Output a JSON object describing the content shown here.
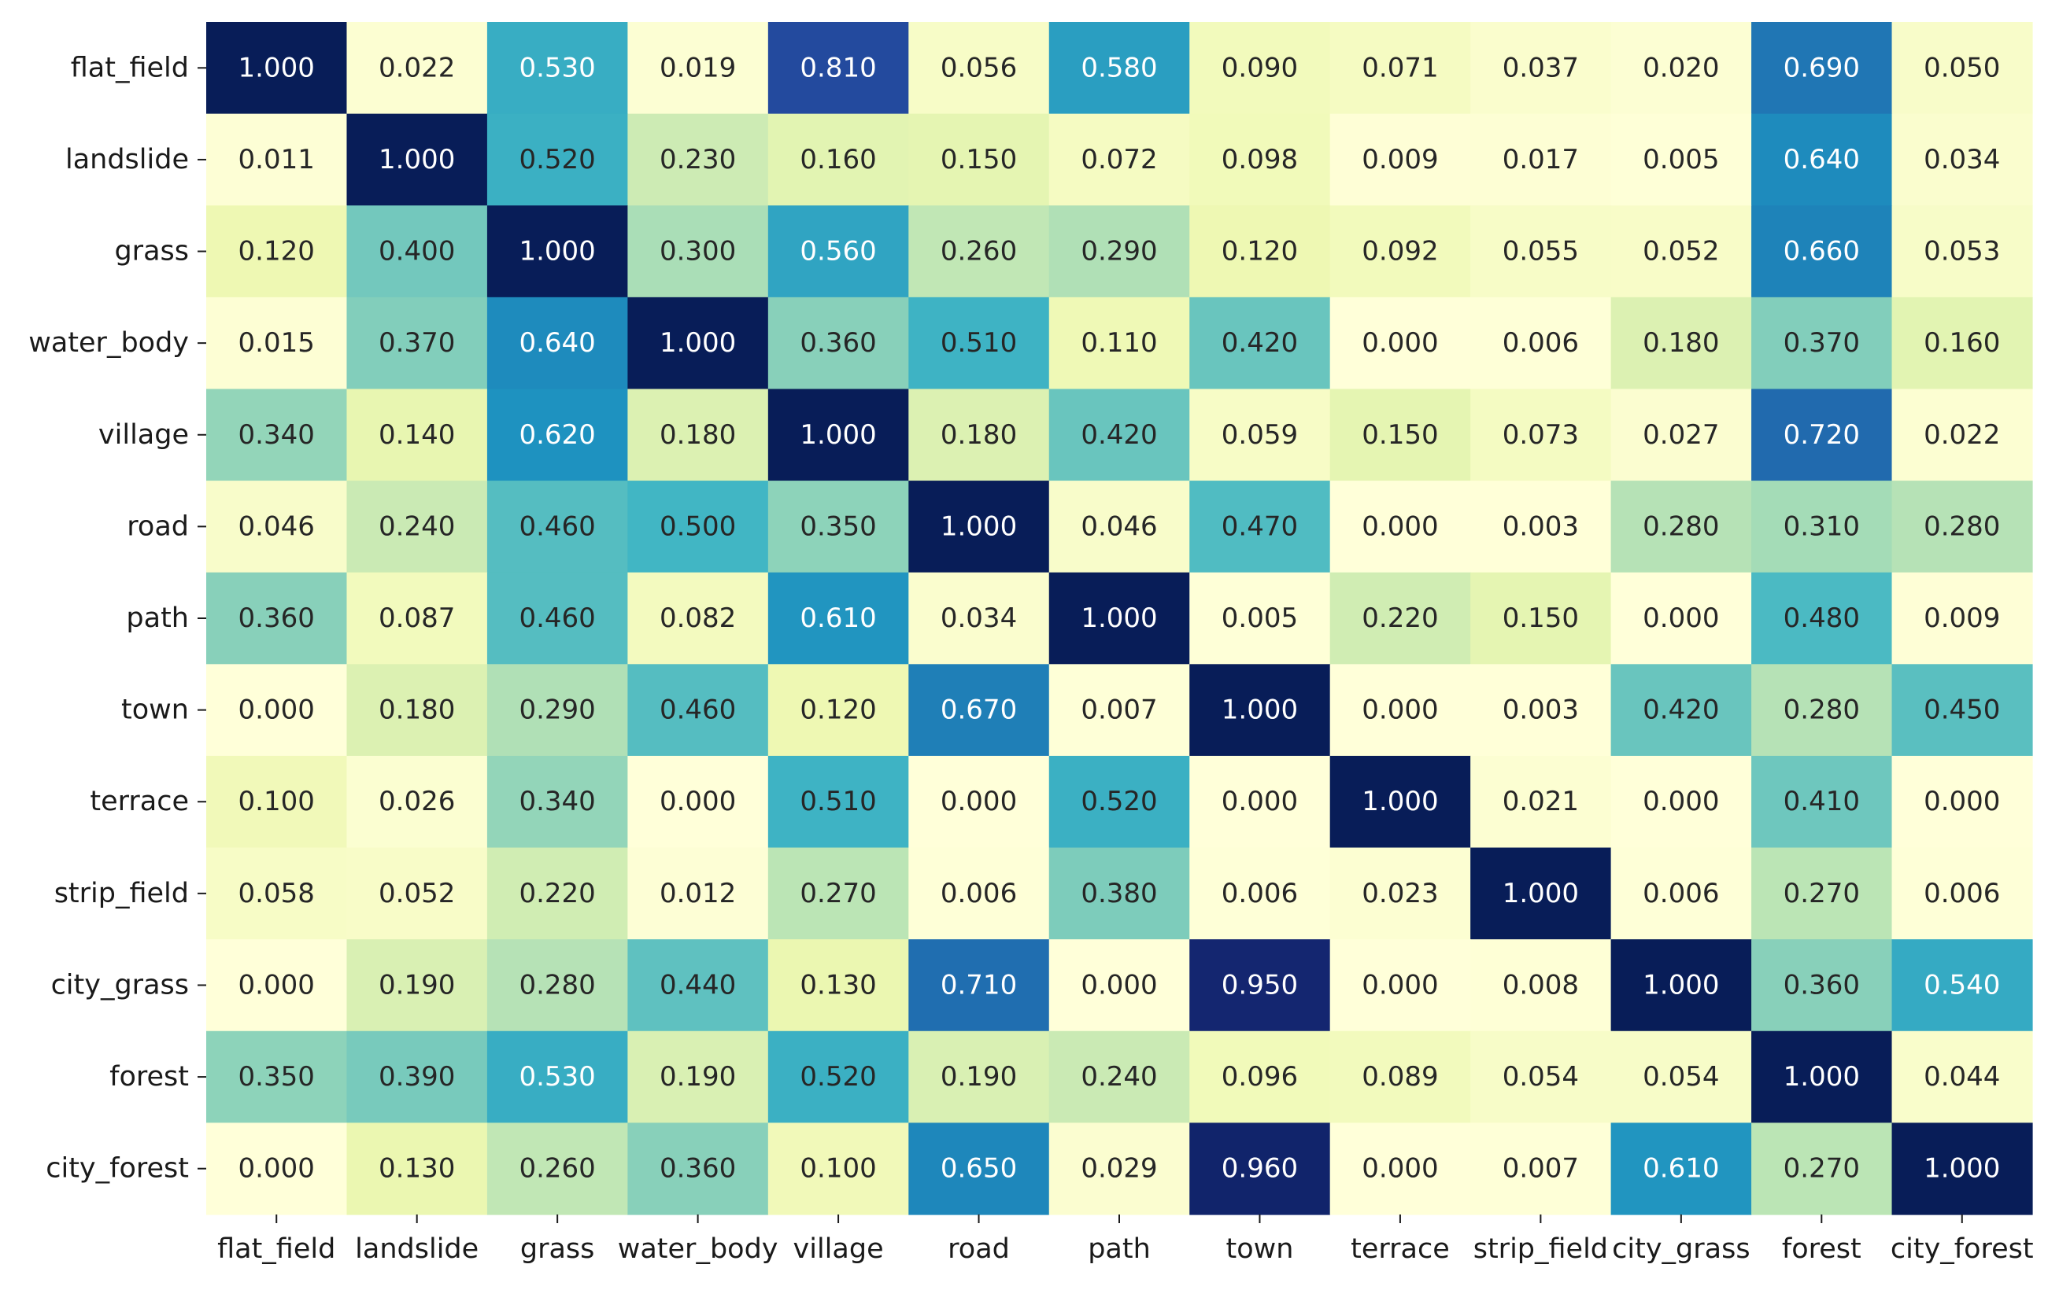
{
  "chart_data": {
    "type": "heatmap",
    "colormap": "YlGnBu",
    "value_range": [
      0,
      1
    ],
    "colorbar": false,
    "row_labels": [
      "flat_field",
      "landslide",
      "grass",
      "water_body",
      "village",
      "road",
      "path",
      "town",
      "terrace",
      "strip_field",
      "city_grass",
      "forest",
      "city_forest"
    ],
    "col_labels": [
      "flat_field",
      "landslide",
      "grass",
      "water_body",
      "village",
      "road",
      "path",
      "town",
      "terrace",
      "strip_field",
      "city_grass",
      "forest",
      "city_forest"
    ],
    "values": [
      [
        "1.000",
        "0.022",
        "0.530",
        "0.019",
        "0.810",
        "0.056",
        "0.580",
        "0.090",
        "0.071",
        "0.037",
        "0.020",
        "0.690",
        "0.050"
      ],
      [
        "0.011",
        "1.000",
        "0.520",
        "0.230",
        "0.160",
        "0.150",
        "0.072",
        "0.098",
        "0.009",
        "0.017",
        "0.005",
        "0.640",
        "0.034"
      ],
      [
        "0.120",
        "0.400",
        "1.000",
        "0.300",
        "0.560",
        "0.260",
        "0.290",
        "0.120",
        "0.092",
        "0.055",
        "0.052",
        "0.660",
        "0.053"
      ],
      [
        "0.015",
        "0.370",
        "0.640",
        "1.000",
        "0.360",
        "0.510",
        "0.110",
        "0.420",
        "0.000",
        "0.006",
        "0.180",
        "0.370",
        "0.160"
      ],
      [
        "0.340",
        "0.140",
        "0.620",
        "0.180",
        "1.000",
        "0.180",
        "0.420",
        "0.059",
        "0.150",
        "0.073",
        "0.027",
        "0.720",
        "0.022"
      ],
      [
        "0.046",
        "0.240",
        "0.460",
        "0.500",
        "0.350",
        "1.000",
        "0.046",
        "0.470",
        "0.000",
        "0.003",
        "0.280",
        "0.310",
        "0.280"
      ],
      [
        "0.360",
        "0.087",
        "0.460",
        "0.082",
        "0.610",
        "0.034",
        "1.000",
        "0.005",
        "0.220",
        "0.150",
        "0.000",
        "0.480",
        "0.009"
      ],
      [
        "0.000",
        "0.180",
        "0.290",
        "0.460",
        "0.120",
        "0.670",
        "0.007",
        "1.000",
        "0.000",
        "0.003",
        "0.420",
        "0.280",
        "0.450"
      ],
      [
        "0.100",
        "0.026",
        "0.340",
        "0.000",
        "0.510",
        "0.000",
        "0.520",
        "0.000",
        "1.000",
        "0.021",
        "0.000",
        "0.410",
        "0.000"
      ],
      [
        "0.058",
        "0.052",
        "0.220",
        "0.012",
        "0.270",
        "0.006",
        "0.380",
        "0.006",
        "0.023",
        "1.000",
        "0.006",
        "0.270",
        "0.006"
      ],
      [
        "0.000",
        "0.190",
        "0.280",
        "0.440",
        "0.130",
        "0.710",
        "0.000",
        "0.950",
        "0.000",
        "0.008",
        "1.000",
        "0.360",
        "0.540"
      ],
      [
        "0.350",
        "0.390",
        "0.530",
        "0.190",
        "0.520",
        "0.190",
        "0.240",
        "0.096",
        "0.089",
        "0.054",
        "0.054",
        "1.000",
        "0.044"
      ],
      [
        "0.000",
        "0.130",
        "0.260",
        "0.360",
        "0.100",
        "0.650",
        "0.029",
        "0.960",
        "0.000",
        "0.007",
        "0.610",
        "0.270",
        "1.000"
      ]
    ]
  }
}
